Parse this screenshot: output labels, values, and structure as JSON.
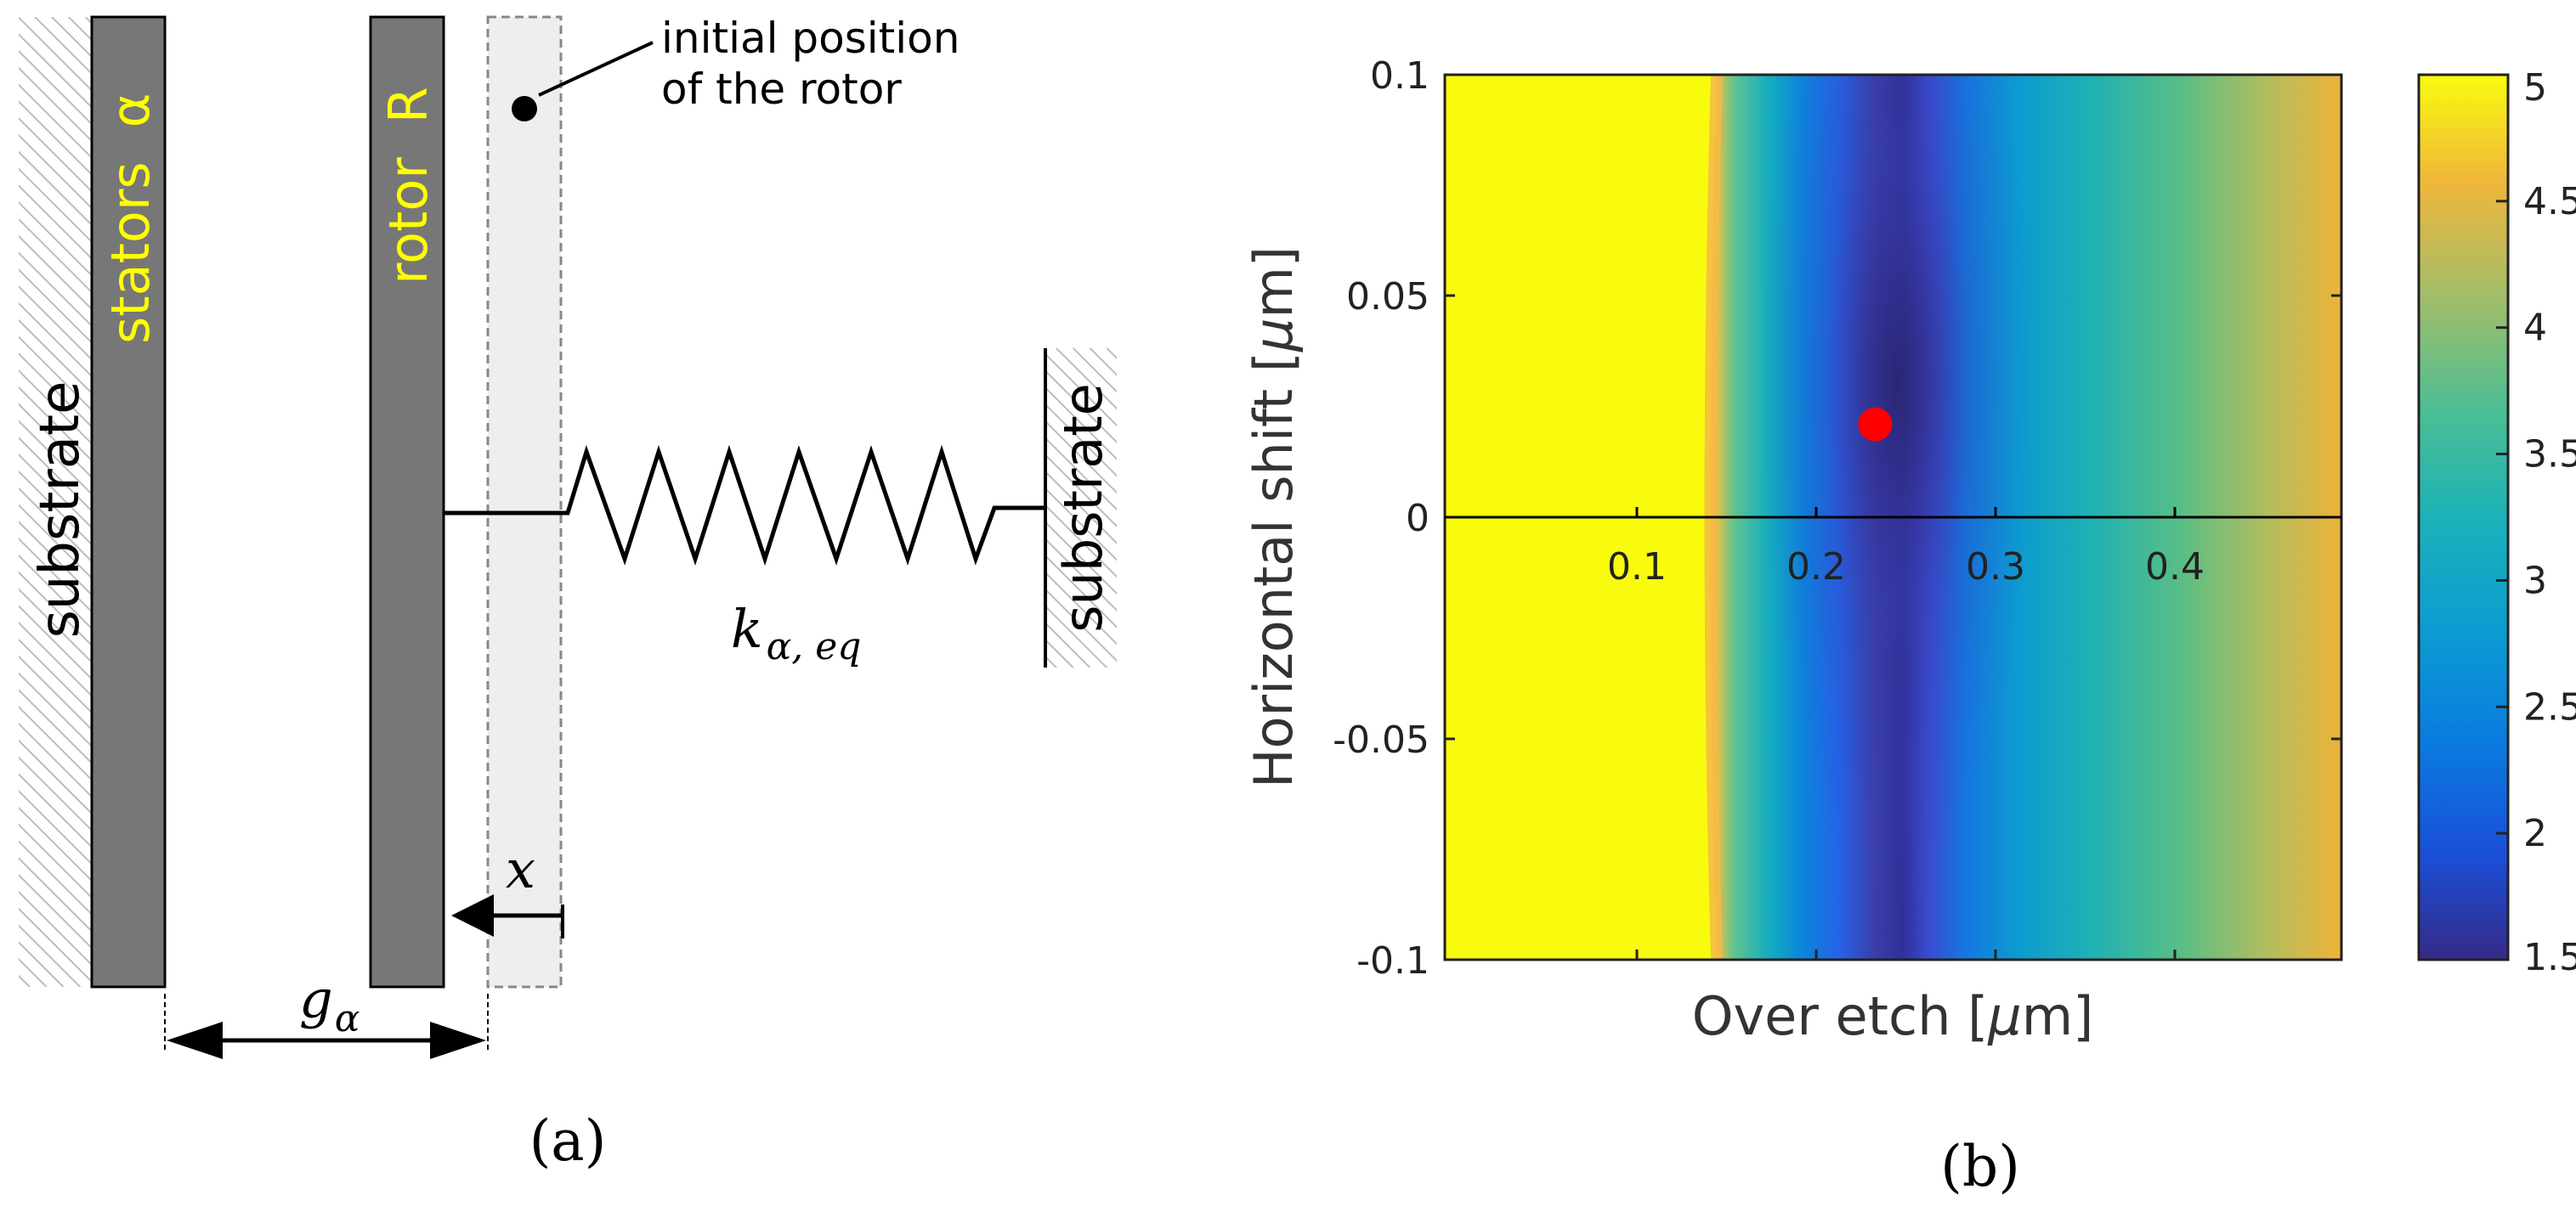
{
  "panel_a": {
    "stator_label_1": "stators",
    "stator_label_2": "α",
    "rotor_label_1": "rotor",
    "rotor_label_2": "R",
    "substrate_left": "substrate",
    "substrate_right": "substrate",
    "initial_position_line1": "initial position",
    "initial_position_line2": "of the rotor",
    "spring_label": "k",
    "spring_subscript": "α, eq",
    "displacement_label": "x",
    "gap_label": "g",
    "gap_subscript": "α",
    "caption": "(a)"
  },
  "panel_b": {
    "caption": "(b)",
    "xlabel_prefix": "Over etch [",
    "xlabel_mu": "μ",
    "xlabel_suffix": "m]",
    "ylabel_prefix": "Horizontal shift [",
    "ylabel_mu": "μ",
    "ylabel_suffix": "m]",
    "y_ticks": [
      "0.1",
      "0.05",
      "0",
      "-0.05",
      "-0.1"
    ],
    "x_ticks": [
      "0.1",
      "0.2",
      "0.3",
      "0.4"
    ],
    "colorbar_ticks": [
      "5",
      "4.5",
      "4",
      "3.5",
      "3",
      "2.5",
      "2",
      "1.5"
    ]
  },
  "chart_data": {
    "type": "heatmap",
    "xlabel": "Over etch [μm]",
    "ylabel": "Horizontal shift [μm]",
    "xlim": [
      0,
      0.5
    ],
    "ylim": [
      -0.1,
      0.1
    ],
    "x_ticks": [
      0.1,
      0.2,
      0.3,
      0.4
    ],
    "y_ticks": [
      -0.1,
      -0.05,
      0,
      0.05,
      0.1
    ],
    "colorbar": {
      "range": [
        1.5,
        5
      ],
      "ticks": [
        1.5,
        2,
        2.5,
        3,
        3.5,
        4,
        4.5,
        5
      ],
      "colormap": "parula"
    },
    "minimum_marker": {
      "x": 0.24,
      "y": 0.021,
      "color": "#ff0000"
    },
    "description_values": {
      "saturated_region_x_max": 0.14,
      "valley_center_x": 0.24,
      "right_edge_value": 4.7
    },
    "grid": false
  },
  "colors": {
    "stator_fill": "#777777",
    "label_yellow": "#ffff00",
    "ghost_rotor_fill": "#eeeeee",
    "ghost_rotor_stroke": "#999999",
    "marker": "#ff0000"
  }
}
